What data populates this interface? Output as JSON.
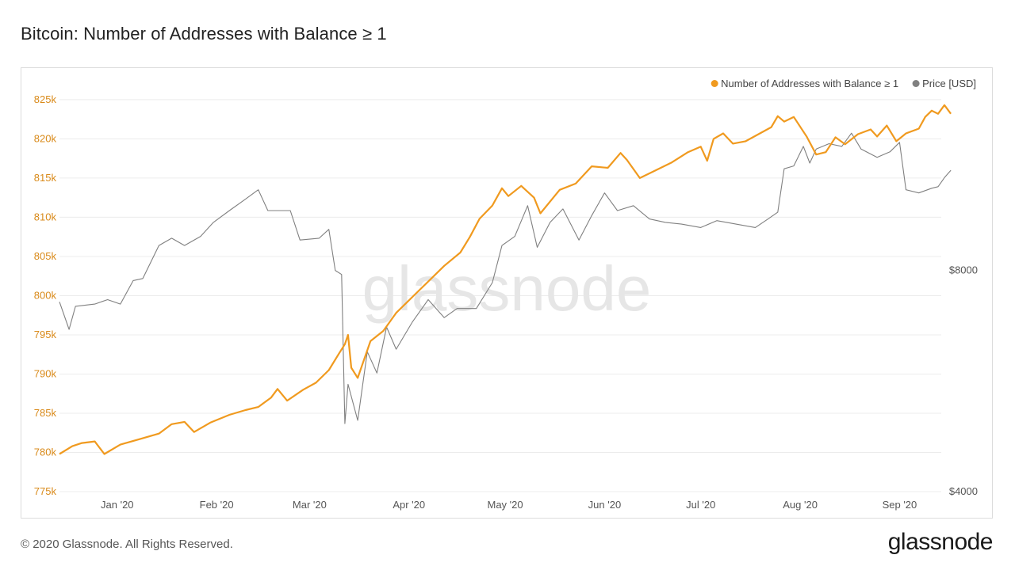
{
  "page": {
    "title": "Bitcoin: Number of Addresses with Balance ≥ 1",
    "footer": "© 2020 Glassnode. All Rights Reserved.",
    "brand": "glassnode",
    "watermark": "glassnode"
  },
  "colors": {
    "addresses": "#f09a1f",
    "price": "#808080",
    "grid": "#ececec",
    "axis_left": "#d98a1a",
    "axis_text": "#555555"
  },
  "chart_data": {
    "type": "line",
    "title": "Bitcoin: Number of Addresses with Balance ≥ 1",
    "xlabel": "",
    "x_range": [
      "2019-12-14",
      "2020-09-14"
    ],
    "x_ticks": [
      {
        "label": "Jan '20",
        "date": "2020-01-01"
      },
      {
        "label": "Feb '20",
        "date": "2020-02-01"
      },
      {
        "label": "Mar '20",
        "date": "2020-03-01"
      },
      {
        "label": "Apr '20",
        "date": "2020-04-01"
      },
      {
        "label": "May '20",
        "date": "2020-05-01"
      },
      {
        "label": "Jun '20",
        "date": "2020-06-01"
      },
      {
        "label": "Jul '20",
        "date": "2020-07-01"
      },
      {
        "label": "Aug '20",
        "date": "2020-08-01"
      },
      {
        "label": "Sep '20",
        "date": "2020-09-01"
      }
    ],
    "y_left": {
      "ylim": [
        775000,
        826000
      ],
      "ticks": [
        {
          "label": "775k",
          "value": 775000
        },
        {
          "label": "780k",
          "value": 780000
        },
        {
          "label": "785k",
          "value": 785000
        },
        {
          "label": "790k",
          "value": 790000
        },
        {
          "label": "795k",
          "value": 795000
        },
        {
          "label": "800k",
          "value": 800000
        },
        {
          "label": "805k",
          "value": 805000
        },
        {
          "label": "810k",
          "value": 810000
        },
        {
          "label": "815k",
          "value": 815000
        },
        {
          "label": "820k",
          "value": 820000
        },
        {
          "label": "825k",
          "value": 825000
        }
      ]
    },
    "y_right": {
      "scale": "log",
      "ylim": [
        4000,
        14000
      ],
      "ticks": [
        {
          "label": "$4000",
          "value": 4000
        },
        {
          "label": "$8000",
          "value": 8000
        }
      ]
    },
    "legend": {
      "placement": "top-right"
    },
    "grid": true,
    "series": [
      {
        "name": "Number of Addresses with Balance ≥ 1",
        "axis": "left",
        "color": "#f09a1f",
        "points": [
          [
            "2019-12-14",
            779800
          ],
          [
            "2019-12-18",
            780800
          ],
          [
            "2019-12-21",
            781200
          ],
          [
            "2019-12-25",
            781400
          ],
          [
            "2019-12-28",
            779800
          ],
          [
            "2020-01-02",
            781000
          ],
          [
            "2020-01-08",
            781700
          ],
          [
            "2020-01-14",
            782400
          ],
          [
            "2020-01-18",
            783600
          ],
          [
            "2020-01-22",
            783900
          ],
          [
            "2020-01-25",
            782600
          ],
          [
            "2020-01-30",
            783800
          ],
          [
            "2020-02-05",
            784800
          ],
          [
            "2020-02-10",
            785400
          ],
          [
            "2020-02-14",
            785800
          ],
          [
            "2020-02-18",
            787000
          ],
          [
            "2020-02-20",
            788100
          ],
          [
            "2020-02-23",
            786600
          ],
          [
            "2020-02-28",
            788000
          ],
          [
            "2020-03-03",
            788900
          ],
          [
            "2020-03-07",
            790500
          ],
          [
            "2020-03-10",
            792500
          ],
          [
            "2020-03-12",
            793800
          ],
          [
            "2020-03-13",
            795000
          ],
          [
            "2020-03-14",
            790800
          ],
          [
            "2020-03-16",
            789500
          ],
          [
            "2020-03-20",
            794200
          ],
          [
            "2020-03-24",
            795500
          ],
          [
            "2020-03-28",
            797800
          ],
          [
            "2020-04-02",
            799800
          ],
          [
            "2020-04-07",
            801800
          ],
          [
            "2020-04-12",
            803800
          ],
          [
            "2020-04-17",
            805500
          ],
          [
            "2020-04-20",
            807500
          ],
          [
            "2020-04-23",
            809800
          ],
          [
            "2020-04-27",
            811500
          ],
          [
            "2020-04-30",
            813700
          ],
          [
            "2020-05-02",
            812700
          ],
          [
            "2020-05-06",
            814000
          ],
          [
            "2020-05-10",
            812500
          ],
          [
            "2020-05-12",
            810500
          ],
          [
            "2020-05-18",
            813500
          ],
          [
            "2020-05-23",
            814300
          ],
          [
            "2020-05-28",
            816500
          ],
          [
            "2020-06-02",
            816300
          ],
          [
            "2020-06-06",
            818200
          ],
          [
            "2020-06-08",
            817300
          ],
          [
            "2020-06-12",
            815000
          ],
          [
            "2020-06-16",
            815800
          ],
          [
            "2020-06-22",
            817000
          ],
          [
            "2020-06-27",
            818300
          ],
          [
            "2020-07-01",
            819000
          ],
          [
            "2020-07-03",
            817200
          ],
          [
            "2020-07-05",
            820000
          ],
          [
            "2020-07-08",
            820700
          ],
          [
            "2020-07-11",
            819400
          ],
          [
            "2020-07-15",
            819700
          ],
          [
            "2020-07-19",
            820600
          ],
          [
            "2020-07-23",
            821500
          ],
          [
            "2020-07-25",
            822900
          ],
          [
            "2020-07-27",
            822200
          ],
          [
            "2020-07-30",
            822800
          ],
          [
            "2020-08-03",
            820300
          ],
          [
            "2020-08-06",
            818000
          ],
          [
            "2020-08-09",
            818300
          ],
          [
            "2020-08-12",
            820200
          ],
          [
            "2020-08-15",
            819300
          ],
          [
            "2020-08-19",
            820600
          ],
          [
            "2020-08-23",
            821200
          ],
          [
            "2020-08-25",
            820300
          ],
          [
            "2020-08-28",
            821700
          ],
          [
            "2020-08-31",
            819700
          ],
          [
            "2020-09-03",
            820700
          ],
          [
            "2020-09-07",
            821300
          ],
          [
            "2020-09-09",
            822800
          ],
          [
            "2020-09-11",
            823600
          ],
          [
            "2020-09-13",
            823200
          ],
          [
            "2020-09-15",
            824300
          ],
          [
            "2020-09-17",
            823200
          ]
        ]
      },
      {
        "name": "Price [USD]",
        "axis": "right",
        "color": "#808080",
        "points": [
          [
            "2019-12-14",
            7250
          ],
          [
            "2019-12-17",
            6650
          ],
          [
            "2019-12-19",
            7150
          ],
          [
            "2019-12-25",
            7200
          ],
          [
            "2019-12-29",
            7300
          ],
          [
            "2020-01-02",
            7200
          ],
          [
            "2020-01-06",
            7750
          ],
          [
            "2020-01-09",
            7800
          ],
          [
            "2020-01-14",
            8650
          ],
          [
            "2020-01-18",
            8850
          ],
          [
            "2020-01-22",
            8650
          ],
          [
            "2020-01-27",
            8900
          ],
          [
            "2020-01-31",
            9300
          ],
          [
            "2020-02-05",
            9650
          ],
          [
            "2020-02-10",
            10000
          ],
          [
            "2020-02-14",
            10300
          ],
          [
            "2020-02-17",
            9650
          ],
          [
            "2020-02-20",
            9650
          ],
          [
            "2020-02-24",
            9650
          ],
          [
            "2020-02-27",
            8800
          ],
          [
            "2020-03-04",
            8850
          ],
          [
            "2020-03-07",
            9100
          ],
          [
            "2020-03-09",
            8000
          ],
          [
            "2020-03-11",
            7900
          ],
          [
            "2020-03-12",
            4950
          ],
          [
            "2020-03-13",
            5600
          ],
          [
            "2020-03-16",
            5000
          ],
          [
            "2020-03-19",
            6200
          ],
          [
            "2020-03-22",
            5800
          ],
          [
            "2020-03-25",
            6700
          ],
          [
            "2020-03-28",
            6250
          ],
          [
            "2020-04-02",
            6800
          ],
          [
            "2020-04-07",
            7300
          ],
          [
            "2020-04-12",
            6900
          ],
          [
            "2020-04-16",
            7100
          ],
          [
            "2020-04-22",
            7100
          ],
          [
            "2020-04-27",
            7700
          ],
          [
            "2020-04-30",
            8650
          ],
          [
            "2020-05-04",
            8900
          ],
          [
            "2020-05-08",
            9800
          ],
          [
            "2020-05-11",
            8600
          ],
          [
            "2020-05-15",
            9300
          ],
          [
            "2020-05-19",
            9700
          ],
          [
            "2020-05-24",
            8800
          ],
          [
            "2020-05-28",
            9500
          ],
          [
            "2020-06-01",
            10200
          ],
          [
            "2020-06-05",
            9650
          ],
          [
            "2020-06-10",
            9800
          ],
          [
            "2020-06-15",
            9400
          ],
          [
            "2020-06-20",
            9300
          ],
          [
            "2020-06-25",
            9250
          ],
          [
            "2020-07-01",
            9150
          ],
          [
            "2020-07-06",
            9350
          ],
          [
            "2020-07-12",
            9250
          ],
          [
            "2020-07-18",
            9150
          ],
          [
            "2020-07-22",
            9400
          ],
          [
            "2020-07-25",
            9600
          ],
          [
            "2020-07-27",
            11000
          ],
          [
            "2020-07-30",
            11100
          ],
          [
            "2020-08-02",
            11800
          ],
          [
            "2020-08-04",
            11200
          ],
          [
            "2020-08-06",
            11700
          ],
          [
            "2020-08-10",
            11900
          ],
          [
            "2020-08-14",
            11800
          ],
          [
            "2020-08-17",
            12300
          ],
          [
            "2020-08-20",
            11700
          ],
          [
            "2020-08-25",
            11400
          ],
          [
            "2020-08-29",
            11600
          ],
          [
            "2020-09-01",
            11950
          ],
          [
            "2020-09-03",
            10300
          ],
          [
            "2020-09-07",
            10200
          ],
          [
            "2020-09-11",
            10350
          ],
          [
            "2020-09-13",
            10400
          ],
          [
            "2020-09-15",
            10700
          ],
          [
            "2020-09-17",
            10950
          ]
        ]
      }
    ]
  }
}
